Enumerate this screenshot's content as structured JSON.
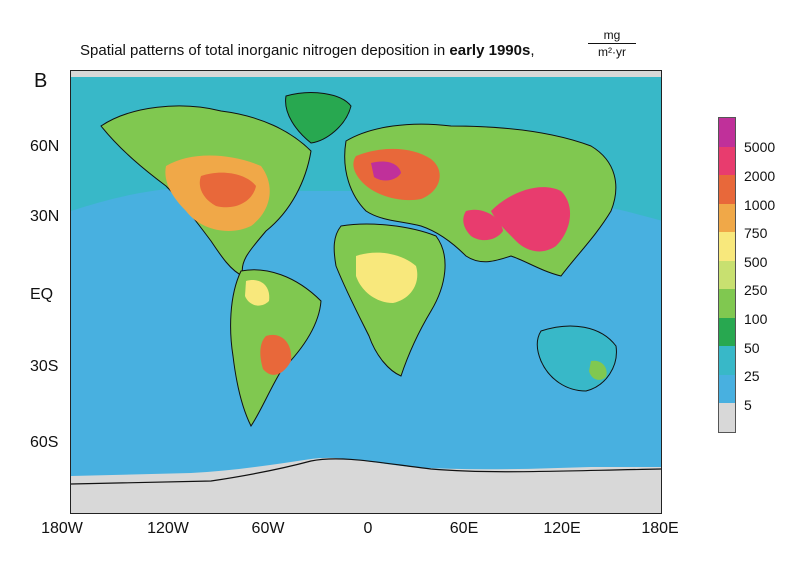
{
  "figure": {
    "title_prefix": "Spatial patterns of total inorganic nitrogen deposition in ",
    "title_bold": "early 1990s",
    "title_suffix": ",",
    "unit_numerator": "mg",
    "unit_denominator": "m²·yr",
    "panel_label": "B"
  },
  "axes": {
    "lat_labels": [
      "60N",
      "30N",
      "EQ",
      "30S",
      "60S"
    ],
    "lon_labels": [
      "180W",
      "120W",
      "60W",
      "0",
      "60E",
      "120E",
      "180E"
    ]
  },
  "legend": {
    "labels": [
      "5000",
      "2000",
      "1000",
      "750",
      "500",
      "250",
      "100",
      "50",
      "25",
      "5"
    ],
    "colors": [
      "#c0309a",
      "#e83c6e",
      "#e8683a",
      "#f0a848",
      "#f8e87c",
      "#c8e070",
      "#80c850",
      "#28a850",
      "#38b8c8",
      "#48b0e0",
      "#d8d8d8"
    ]
  },
  "regions": {
    "ocean": "#48b0e0",
    "polar": "#d8d8d8"
  }
}
